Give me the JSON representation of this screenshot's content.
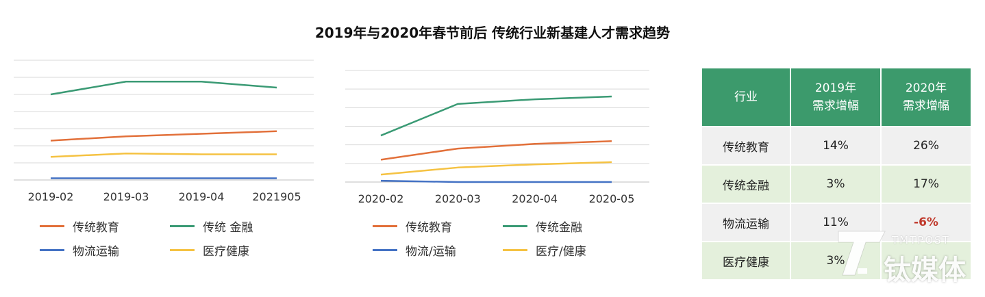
{
  "title": "2019年与2020年春节前后 传统行业新基建人才需求趋势",
  "colors": {
    "education": "#e2703a",
    "finance": "#3a9a74",
    "logistics": "#4472c4",
    "medical": "#f5c242"
  },
  "chart_data": [
    {
      "type": "line",
      "categories": [
        "2019-02",
        "2019-03",
        "2019-04",
        "2021905"
      ],
      "ylim": [
        0,
        7
      ],
      "grid": true,
      "series": [
        {
          "name": "传统教育",
          "color": "#e2703a",
          "values": [
            2.3,
            2.55,
            2.7,
            2.85
          ]
        },
        {
          "name": "传统 金融",
          "color": "#3a9a74",
          "values": [
            5.0,
            5.75,
            5.75,
            5.4
          ]
        },
        {
          "name": "物流运输",
          "color": "#4472c4",
          "values": [
            0.1,
            0.1,
            0.1,
            0.1
          ]
        },
        {
          "name": "医疗健康",
          "color": "#f5c242",
          "values": [
            1.35,
            1.55,
            1.5,
            1.5
          ]
        }
      ]
    },
    {
      "type": "line",
      "categories": [
        "2020-02",
        "2020-03",
        "2020-04",
        "2020-05"
      ],
      "ylim": [
        0,
        6
      ],
      "grid": true,
      "series": [
        {
          "name": "传统教育",
          "color": "#e2703a",
          "values": [
            1.2,
            1.8,
            2.05,
            2.2
          ]
        },
        {
          "name": "传统金融",
          "color": "#3a9a74",
          "values": [
            2.5,
            4.2,
            4.45,
            4.6
          ]
        },
        {
          "name": "物流/运输",
          "color": "#4472c4",
          "values": [
            0.07,
            0.0,
            0.0,
            0.0
          ]
        },
        {
          "name": "医疗/健康",
          "color": "#f5c242",
          "values": [
            0.4,
            0.78,
            0.95,
            1.07
          ]
        }
      ]
    },
    {
      "type": "table",
      "headers": [
        "行业",
        "2019年\n需求增幅",
        "2020年\n需求增幅"
      ],
      "rows": [
        [
          "传统教育",
          "14%",
          "26%"
        ],
        [
          "传统金融",
          "3%",
          "17%"
        ],
        [
          "物流运输",
          "11%",
          "-6%"
        ],
        [
          "医疗健康",
          "3%",
          ""
        ]
      ]
    }
  ],
  "legend1": [
    {
      "label": "传统教育",
      "color": "#e2703a"
    },
    {
      "label": "传统 金融",
      "color": "#3a9a74"
    },
    {
      "label": "物流运输",
      "color": "#4472c4"
    },
    {
      "label": "医疗健康",
      "color": "#f5c242"
    }
  ],
  "legend2": [
    {
      "label": "传统教育",
      "color": "#e2703a"
    },
    {
      "label": "传统金融",
      "color": "#3a9a74"
    },
    {
      "label": "物流/运输",
      "color": "#4472c4"
    },
    {
      "label": "医疗/健康",
      "color": "#f5c242"
    }
  ],
  "table": {
    "header_industry": "行业",
    "header_2019_line1": "2019年",
    "header_2019_line2": "需求增幅",
    "header_2020_line1": "2020年",
    "header_2020_line2": "需求增幅",
    "rows": [
      {
        "industry": "传统教育",
        "y2019": "14%",
        "y2020": "26%",
        "y2020_negative": false
      },
      {
        "industry": "传统金融",
        "y2019": "3%",
        "y2020": "17%",
        "y2020_negative": false
      },
      {
        "industry": "物流运输",
        "y2019": "11%",
        "y2020": "-6%",
        "y2020_negative": true
      },
      {
        "industry": "医疗健康",
        "y2019": "3%",
        "y2020": "",
        "y2020_negative": false
      }
    ]
  },
  "watermark": {
    "en": "TMTPOST",
    "cn": "钛媒体"
  }
}
